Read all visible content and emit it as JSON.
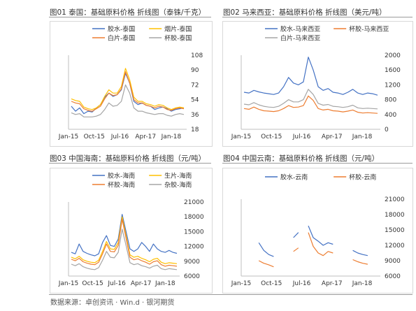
{
  "source": "数据来源：卓创资讯 · Win.d · 银河期货",
  "chart_data": [
    {
      "type": "line",
      "title": "图01 泰国：基础原料价格 折线图（泰铢/千克）",
      "xticks": [
        "Jan-15",
        "Oct-15",
        "Jul-16",
        "Apr-17",
        "Jan-18"
      ],
      "yticks": [
        18,
        36,
        54,
        72,
        90,
        108
      ],
      "ylim": [
        18,
        108
      ],
      "legend": [
        "胶水-泰国",
        "烟片-泰国",
        "白片-泰国",
        "杯胶-泰国"
      ],
      "series": [
        {
          "name": "胶水-泰国",
          "color": "#4472c4",
          "values": [
            46,
            40,
            44,
            37,
            40,
            39,
            44,
            48,
            57,
            62,
            58,
            60,
            66,
            86,
            74,
            52,
            48,
            50,
            47,
            46,
            42,
            44,
            45,
            43,
            40,
            42,
            43,
            44
          ]
        },
        {
          "name": "烟片-泰国",
          "color": "#ffc000",
          "values": [
            55,
            53,
            52,
            45,
            43,
            42,
            44,
            48,
            58,
            66,
            62,
            62,
            70,
            92,
            78,
            57,
            52,
            52,
            49,
            48,
            46,
            48,
            47,
            44,
            42,
            44,
            45,
            44
          ]
        },
        {
          "name": "白片-泰国",
          "color": "#ed7d31",
          "values": [
            52,
            50,
            49,
            43,
            41,
            40,
            43,
            46,
            55,
            62,
            59,
            60,
            67,
            88,
            74,
            54,
            50,
            50,
            47,
            46,
            44,
            46,
            45,
            42,
            41,
            43,
            44,
            43
          ]
        },
        {
          "name": "杯胶-泰国",
          "color": "#a5a5a5",
          "values": [
            38,
            36,
            37,
            33,
            33,
            33,
            34,
            36,
            42,
            50,
            46,
            47,
            52,
            72,
            62,
            44,
            40,
            40,
            38,
            37,
            36,
            37,
            37,
            35,
            34,
            36,
            37,
            36
          ]
        }
      ]
    },
    {
      "type": "line",
      "title": "图02 马来西亚：基础原料价格 折线图（美元/吨）",
      "xticks": [
        "Jan-15",
        "Oct-15",
        "Jul-16",
        "Apr-17",
        "Jan-18"
      ],
      "yticks": [
        0,
        400,
        800,
        1200,
        1600,
        2000
      ],
      "ylim": [
        0,
        2000
      ],
      "legend": [
        "胶水-马来西亚",
        "杯胶-马来西亚",
        "白片-马来西亚"
      ],
      "series": [
        {
          "name": "胶水-马来西亚",
          "color": "#4472c4",
          "values": [
            1000,
            980,
            1050,
            1010,
            980,
            960,
            940,
            980,
            1150,
            1400,
            1250,
            1200,
            1280,
            1950,
            1600,
            1150,
            1050,
            1100,
            1000,
            980,
            940,
            1000,
            1080,
            980,
            940,
            980,
            960,
            920
          ]
        },
        {
          "name": "杯胶-马来西亚",
          "color": "#ed7d31",
          "values": [
            560,
            540,
            600,
            540,
            500,
            490,
            480,
            500,
            560,
            640,
            590,
            600,
            640,
            900,
            780,
            560,
            520,
            540,
            500,
            490,
            470,
            490,
            520,
            460,
            440,
            450,
            440,
            430
          ]
        },
        {
          "name": "白片-马来西亚",
          "color": "#a5a5a5",
          "values": [
            680,
            660,
            720,
            660,
            620,
            600,
            590,
            620,
            700,
            800,
            740,
            740,
            800,
            1080,
            940,
            700,
            650,
            670,
            620,
            610,
            590,
            610,
            650,
            580,
            560,
            570,
            560,
            550
          ]
        }
      ]
    },
    {
      "type": "line",
      "title": "图03 中国海南：基础原料价格 折线图（元/吨）",
      "xticks": [
        "Jan-15",
        "Oct-15",
        "Jul-16",
        "Apr-17",
        "Jan-18"
      ],
      "yticks": [
        6000,
        9000,
        12000,
        15000,
        18000,
        21000
      ],
      "ylim": [
        6000,
        21000
      ],
      "legend": [
        "胶水-海南",
        "生片-海南",
        "杯胶-海南",
        "杂胶-海南"
      ],
      "series": [
        {
          "name": "胶水-海南",
          "color": "#4472c4",
          "values": [
            10800,
            10500,
            12500,
            11000,
            10600,
            10300,
            10100,
            10500,
            12800,
            14200,
            12200,
            12000,
            13500,
            18500,
            15000,
            11500,
            11000,
            11500,
            12800,
            12000,
            11000,
            12500,
            11500,
            11000,
            10800,
            11200,
            10800,
            10600
          ]
        },
        {
          "name": "生片-海南",
          "color": "#ffc000",
          "values": [
            9800,
            9500,
            10000,
            9300,
            9000,
            8800,
            8700,
            9200,
            11000,
            13000,
            11500,
            11400,
            12800,
            18000,
            14200,
            10300,
            9800,
            10000,
            9600,
            9300,
            8900,
            9400,
            9600,
            8800,
            8500,
            8700,
            8600,
            8500
          ]
        },
        {
          "name": "杯胶-海南",
          "color": "#ed7d31",
          "values": [
            9400,
            9100,
            9600,
            8900,
            8600,
            8400,
            8300,
            8800,
            10500,
            12500,
            11000,
            10900,
            12200,
            17500,
            13700,
            9800,
            9300,
            9500,
            9100,
            8800,
            8400,
            8900,
            9100,
            8300,
            8000,
            8200,
            8100,
            8000
          ]
        },
        {
          "name": "杂胶-海南",
          "color": "#a5a5a5",
          "values": [
            8400,
            8100,
            8500,
            7900,
            7600,
            7400,
            7300,
            7700,
            9200,
            11000,
            9800,
            9700,
            10800,
            15500,
            12200,
            8700,
            8300,
            8500,
            8100,
            7900,
            7600,
            8000,
            8200,
            7500,
            7300,
            7500,
            7400,
            7300
          ]
        }
      ]
    },
    {
      "type": "line",
      "title": "图04 中国云南：基础原料价格 折线图（元/吨）",
      "xticks": [
        "Jan-15",
        "Oct-15",
        "Jul-16",
        "Apr-17",
        "Jan-18"
      ],
      "yticks": [
        6000,
        9000,
        12000,
        15000,
        18000,
        21000
      ],
      "ylim": [
        6000,
        21000
      ],
      "legend": [
        "胶水-云南",
        "杯胶-云南"
      ],
      "series": [
        {
          "name": "胶水-云南",
          "color": "#4472c4",
          "values": [
            null,
            null,
            null,
            12500,
            11000,
            10200,
            9800,
            null,
            null,
            null,
            13500,
            14500,
            null,
            15800,
            13500,
            12800,
            12000,
            12500,
            12200,
            null,
            null,
            null,
            11000,
            10500,
            10200,
            10000,
            null,
            null
          ]
        },
        {
          "name": "杯胶-云南",
          "color": "#ed7d31",
          "values": [
            null,
            null,
            null,
            9000,
            8500,
            8200,
            7800,
            null,
            null,
            null,
            10800,
            11500,
            null,
            14500,
            11800,
            10500,
            10000,
            10800,
            10500,
            null,
            null,
            null,
            9200,
            8800,
            8500,
            8300,
            null,
            null
          ]
        }
      ]
    }
  ]
}
